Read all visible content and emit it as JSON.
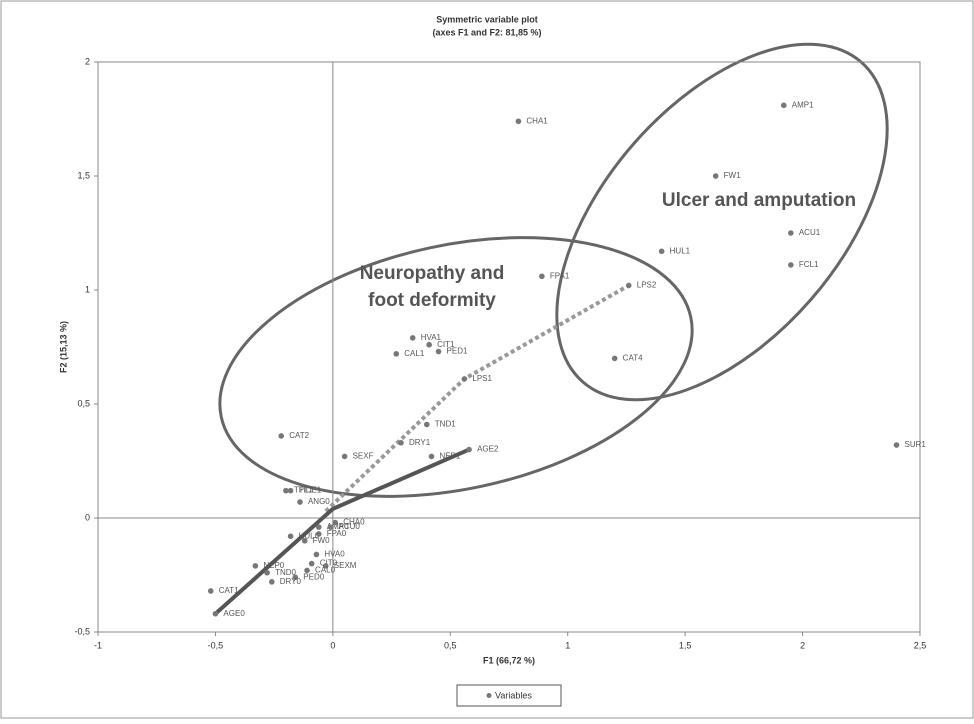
{
  "chart_data": {
    "type": "scatter",
    "title": "Symmetric variable plot",
    "subtitle": "(axes F1 and F2: 81,85 %)",
    "x_label": "F1 (66,72 %)",
    "y_label": "F2 (15,13 %)",
    "xlim": [
      -1,
      2.5
    ],
    "ylim": [
      -0.5,
      2
    ],
    "xticks": [
      -1,
      {
        "value": -0.5,
        "label": "-0,5"
      },
      0,
      {
        "value": 0.5,
        "label": "0,5"
      },
      1,
      {
        "value": 1.5,
        "label": "1,5"
      },
      2,
      {
        "value": 2.5,
        "label": "2,5"
      }
    ],
    "yticks": [
      {
        "value": -0.5,
        "label": "-0,5"
      },
      0,
      {
        "value": 0.5,
        "label": "0,5"
      },
      1,
      {
        "value": 1.5,
        "label": "1,5"
      },
      2
    ],
    "legend": "bottom",
    "series": [
      {
        "name": "Variables",
        "color": "#777777",
        "labels": [
          "CHA1",
          "AMP1",
          "FW1",
          "ACU1",
          "HUL1",
          "FCL1",
          "FPA1",
          "LPS2",
          "CAT4",
          "HVA1",
          "CIT1",
          "CAL1",
          "PED1",
          "LPS1",
          "TND1",
          "CAT2",
          "DRY1",
          "SEXF",
          "AGE2",
          "NEP1",
          "SUR1",
          "TPL1",
          "TIDE1",
          "ANG0",
          "HUL0",
          "AMP0",
          "ACU0",
          "CHA0",
          "FPA0",
          "FW0",
          "HVA0",
          "CIT0",
          "SEXM",
          "CAL0",
          "PED0",
          "TND0",
          "DRY0",
          "NEP0",
          "CAT1",
          "AGE0"
        ],
        "x": [
          0.79,
          1.92,
          1.63,
          1.95,
          1.4,
          1.95,
          0.89,
          1.26,
          1.2,
          0.34,
          0.41,
          0.27,
          0.45,
          0.56,
          0.4,
          -0.22,
          0.29,
          0.05,
          0.58,
          0.42,
          2.4,
          -0.2,
          -0.18,
          -0.14,
          -0.18,
          -0.06,
          -0.01,
          0.01,
          -0.06,
          -0.12,
          -0.07,
          -0.09,
          -0.03,
          -0.11,
          -0.16,
          -0.28,
          -0.26,
          -0.33,
          -0.52,
          -0.5
        ],
        "values": [
          1.74,
          1.81,
          1.5,
          1.25,
          1.17,
          1.11,
          1.06,
          1.02,
          0.7,
          0.79,
          0.76,
          0.72,
          0.73,
          0.61,
          0.41,
          0.36,
          0.33,
          0.27,
          0.3,
          0.27,
          0.32,
          0.12,
          0.12,
          0.07,
          -0.08,
          -0.04,
          -0.04,
          -0.02,
          -0.07,
          -0.1,
          -0.16,
          -0.2,
          -0.21,
          -0.23,
          -0.26,
          -0.24,
          -0.28,
          -0.21,
          -0.32,
          -0.42
        ]
      }
    ],
    "trajectories": [
      {
        "color": "#999999",
        "dashed": true,
        "x": [
          -0.03,
          0.56,
          1.26
        ],
        "values": [
          0.03,
          0.61,
          1.02
        ]
      },
      {
        "color": "#555555",
        "dashed": false,
        "x": [
          -0.5,
          0.0,
          0.58
        ],
        "values": [
          -0.42,
          0.04,
          0.3
        ]
      }
    ],
    "annotations": [
      "Ulcer and amputation",
      "Neuropathy and",
      "foot deformity"
    ]
  }
}
